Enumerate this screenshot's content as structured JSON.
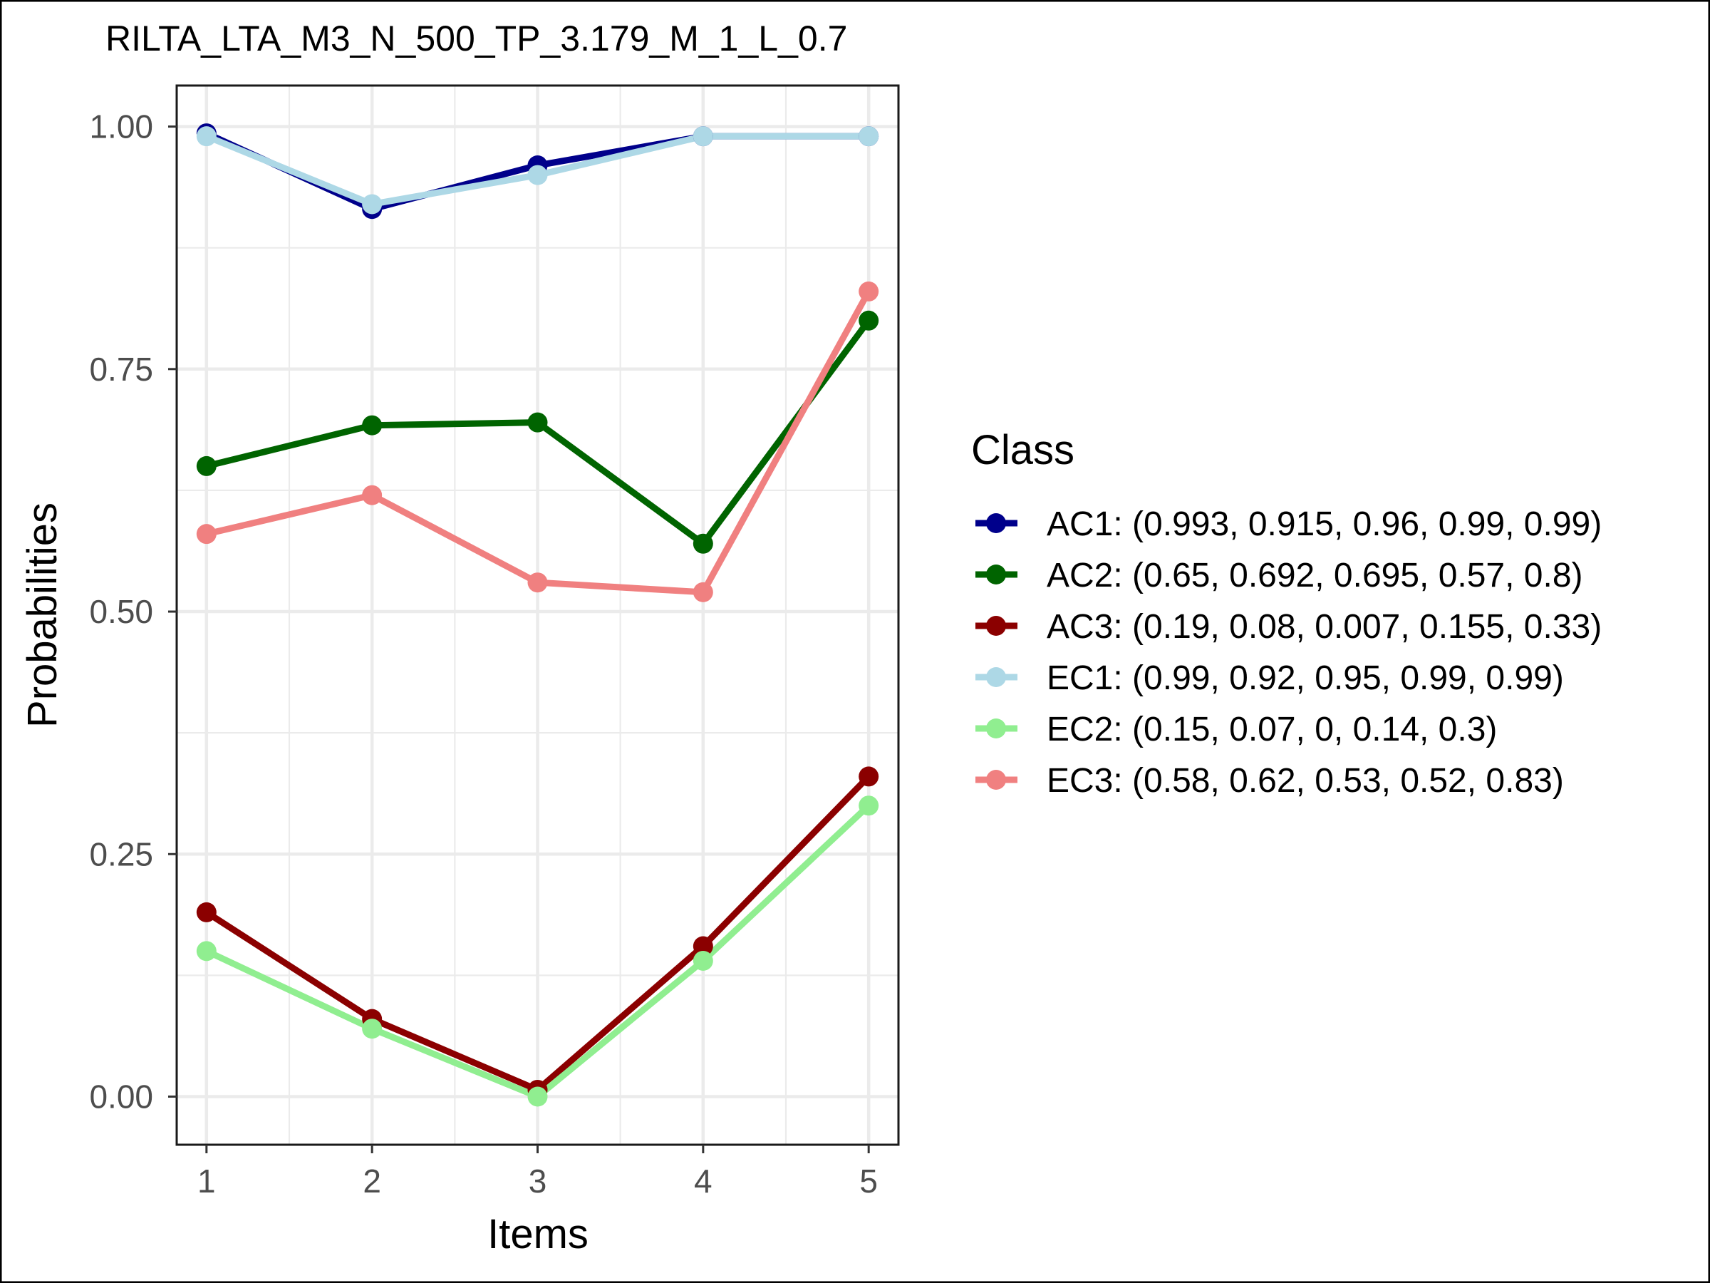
{
  "chart_data": {
    "type": "line",
    "title": "RILTA_LTA_M3_N_500_TP_3.179_M_1_L_0.7",
    "xlabel": "Items",
    "ylabel": "Probabilities",
    "x": [
      1,
      2,
      3,
      4,
      5
    ],
    "x_tick_labels": [
      "1",
      "2",
      "3",
      "4",
      "5"
    ],
    "y_ticks": [
      0.0,
      0.25,
      0.5,
      0.75,
      1.0
    ],
    "y_tick_labels": [
      "0.00",
      "0.25",
      "0.50",
      "0.75",
      "1.00"
    ],
    "xlim": [
      0.82,
      5.18
    ],
    "ylim": [
      -0.0496,
      1.0423
    ],
    "grid": true,
    "legend_title": "Class",
    "legend_position": "right",
    "series": [
      {
        "name": "AC1: (0.993, 0.915, 0.96, 0.99, 0.99)",
        "color": "#00008b",
        "values": [
          0.993,
          0.915,
          0.96,
          0.99,
          0.99
        ]
      },
      {
        "name": "AC2: (0.65, 0.692, 0.695, 0.57, 0.8)",
        "color": "#006400",
        "values": [
          0.65,
          0.692,
          0.695,
          0.57,
          0.8
        ]
      },
      {
        "name": "AC3: (0.19, 0.08, 0.007, 0.155, 0.33)",
        "color": "#8b0000",
        "values": [
          0.19,
          0.08,
          0.007,
          0.155,
          0.33
        ]
      },
      {
        "name": "EC1: (0.99, 0.92, 0.95, 0.99, 0.99)",
        "color": "#add8e6",
        "values": [
          0.99,
          0.92,
          0.95,
          0.99,
          0.99
        ]
      },
      {
        "name": "EC2: (0.15, 0.07, 0, 0.14, 0.3)",
        "color": "#90ee90",
        "values": [
          0.15,
          0.07,
          0,
          0.14,
          0.3
        ]
      },
      {
        "name": "EC3: (0.58, 0.62, 0.53, 0.52, 0.83)",
        "color": "#f08080",
        "values": [
          0.58,
          0.62,
          0.53,
          0.52,
          0.83
        ]
      }
    ]
  }
}
